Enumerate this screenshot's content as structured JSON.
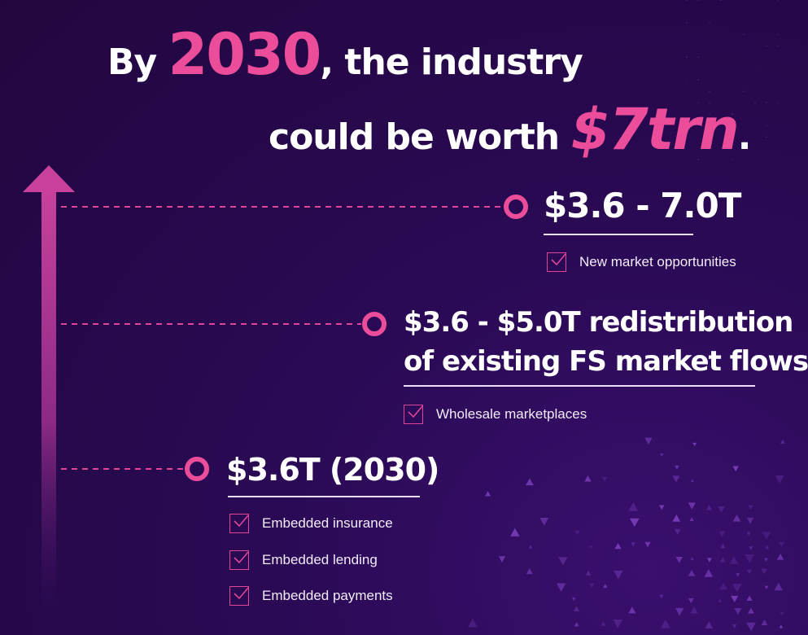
{
  "headline": {
    "line1_prefix": "By",
    "line1_year": "2030",
    "line1_suffix": ", the industry",
    "line2_prefix": "could be worth",
    "line2_value": "$7trn",
    "line2_suffix": "."
  },
  "colors": {
    "accent": "#ec4d9a",
    "background": "#2a0a55",
    "text": "#ffffff"
  },
  "tiers": [
    {
      "title_line1": "$3.6 - 7.0T",
      "title_line2": "",
      "items": [
        "New market opportunities"
      ]
    },
    {
      "title_line1": "$3.6 - $5.0T redistribution",
      "title_line2": "of existing FS market flows",
      "items": [
        "Wholesale marketplaces"
      ]
    },
    {
      "title_line1": "$3.6T (2030)",
      "title_line2": "",
      "items": [
        "Embedded insurance",
        "Embedded lending",
        "Embedded payments"
      ]
    }
  ],
  "icons": {
    "arrow": "up-arrow-icon",
    "marker": "ring-marker-icon",
    "check": "checkbox-icon"
  }
}
